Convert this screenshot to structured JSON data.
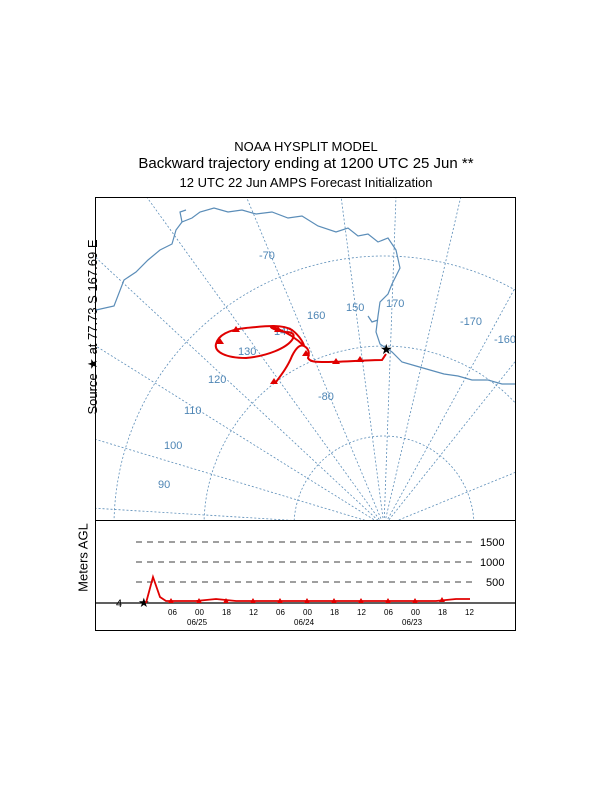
{
  "header": {
    "line1": "NOAA HYSPLIT MODEL",
    "line2": "Backward trajectory ending at 1200 UTC 25 Jun **",
    "line3": "12 UTC 22 Jun    AMPS  Forecast Initialization"
  },
  "source_label": "Source ★ at  77.73 S  167.69 E",
  "height_axis_label": "Meters AGL",
  "colors": {
    "trajectory": "#e00000",
    "map_lines": "#5b8db8",
    "border": "#000000"
  },
  "longitude_labels": [
    "-70",
    "150",
    "160",
    "170",
    "-170",
    "-160",
    "130",
    "140",
    "120",
    "-80",
    "110",
    "100",
    "90"
  ],
  "height_levels": [
    "1500",
    "1000",
    "500"
  ],
  "source_height": "4",
  "time_ticks": [
    "06",
    "00",
    "18",
    "12",
    "06",
    "00",
    "18",
    "12",
    "06",
    "00",
    "18",
    "12"
  ],
  "date_labels": [
    "06/25",
    "06/24",
    "06/23"
  ],
  "icons": {
    "source": "star-icon",
    "trajectory_marker": "triangle-icon"
  }
}
